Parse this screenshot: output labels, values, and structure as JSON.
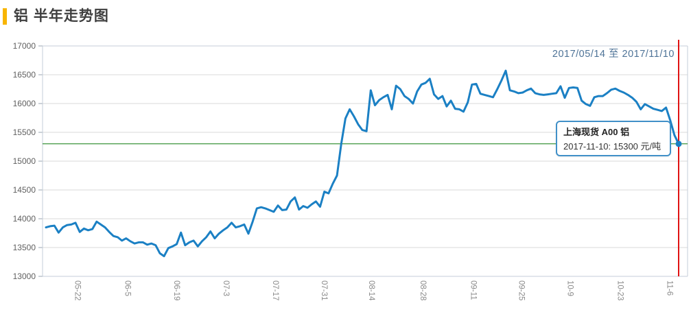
{
  "header": {
    "title": "铝 半年走势图",
    "accent_color": "#F8B500"
  },
  "date_range_label": "2017/05/14 至 2017/11/10",
  "tooltip": {
    "title": "上海现货 A00 铝",
    "detail": "2017-11-10: 15300 元/吨"
  },
  "chart_data": {
    "type": "line",
    "title": "铝 半年走势图",
    "series_name": "上海现货 A00 铝",
    "unit": "元/吨",
    "date_start": "2017-05-14",
    "date_end": "2017-11-10",
    "x_note": "consecutive trading days from 2017-05-15 to 2017-11-10, evenly spaced",
    "y_min": 13000,
    "y_max": 17000,
    "y_step": 500,
    "y_ticks": [
      17000,
      16500,
      16000,
      15500,
      15000,
      14500,
      14000,
      13500,
      13000
    ],
    "x_ticks": [
      {
        "label": "05-22",
        "pos": 0.046
      },
      {
        "label": "06-5",
        "pos": 0.125
      },
      {
        "label": "06-19",
        "pos": 0.203
      },
      {
        "label": "07-3",
        "pos": 0.281
      },
      {
        "label": "07-17",
        "pos": 0.359
      },
      {
        "label": "07-31",
        "pos": 0.436
      },
      {
        "label": "08-14",
        "pos": 0.511
      },
      {
        "label": "08-28",
        "pos": 0.592
      },
      {
        "label": "09-11",
        "pos": 0.672
      },
      {
        "label": "09-25",
        "pos": 0.748
      },
      {
        "label": "10-9",
        "pos": 0.825
      },
      {
        "label": "10-23",
        "pos": 0.904
      },
      {
        "label": "11-6",
        "pos": 0.982
      }
    ],
    "values": [
      13850,
      13870,
      13880,
      13760,
      13850,
      13890,
      13900,
      13930,
      13770,
      13830,
      13800,
      13820,
      13950,
      13900,
      13850,
      13770,
      13700,
      13680,
      13620,
      13660,
      13610,
      13570,
      13590,
      13590,
      13550,
      13570,
      13540,
      13400,
      13350,
      13490,
      13520,
      13560,
      13760,
      13540,
      13590,
      13620,
      13520,
      13610,
      13680,
      13780,
      13660,
      13740,
      13800,
      13850,
      13930,
      13850,
      13870,
      13900,
      13740,
      13950,
      14180,
      14200,
      14180,
      14150,
      14120,
      14230,
      14150,
      14160,
      14300,
      14370,
      14160,
      14220,
      14190,
      14250,
      14300,
      14210,
      14470,
      14440,
      14610,
      14750,
      15300,
      15740,
      15900,
      15780,
      15640,
      15540,
      15520,
      16230,
      15970,
      16060,
      16110,
      16150,
      15900,
      16310,
      16250,
      16130,
      16080,
      16000,
      16210,
      16330,
      16360,
      16430,
      16160,
      16080,
      16130,
      15950,
      16050,
      15910,
      15900,
      15860,
      16020,
      16330,
      16340,
      16170,
      16150,
      16130,
      16110,
      16250,
      16400,
      16570,
      16230,
      16210,
      16180,
      16190,
      16230,
      16260,
      16180,
      16160,
      16150,
      16160,
      16170,
      16180,
      16300,
      16100,
      16270,
      16280,
      16270,
      16050,
      15990,
      15960,
      16110,
      16130,
      16130,
      16180,
      16240,
      16260,
      16220,
      16190,
      16150,
      16100,
      16030,
      15900,
      15990,
      15950,
      15910,
      15890,
      15870,
      15930,
      15710,
      15450,
      15300
    ],
    "last_point": {
      "date": "2017-11-10",
      "value": 15300
    },
    "reference_line_value": 15300,
    "grid": true,
    "legend": false,
    "colors": {
      "line": "#1b80c4",
      "reference_line": "#0c7a0c",
      "current_marker_line": "#e01212",
      "grid": "#d9d9d9",
      "axis_border": "#c5ced8",
      "y_tick_text": "#5f5f5f",
      "x_tick_text": "#8a8a8a",
      "date_range_text": "#4e7397",
      "title_accent": "#F8B500"
    }
  }
}
